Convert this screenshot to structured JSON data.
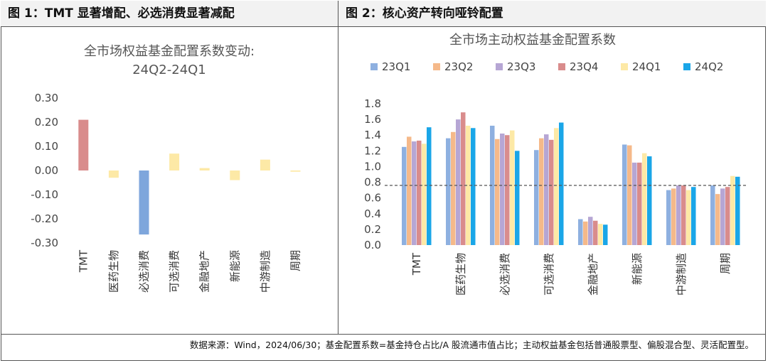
{
  "headers": {
    "left": "图 1：TMT 显著增配、必选消费显著减配",
    "right": "图 2：核心资产转向哑铃配置"
  },
  "footnote": "数据来源：Wind，2024/06/30；基金配置系数=基金持仓占比/A 股流通市值占比；主动权益基金包括普通股票型、偏股混合型、灵活配置型。",
  "chart_data": [
    {
      "type": "bar",
      "title": "全市场权益基金配置系数变动:",
      "subtitle": "24Q2-24Q1",
      "categories": [
        "TMT",
        "医药生物",
        "必选消费",
        "可选消费",
        "金融地产",
        "新能源",
        "中游制造",
        "周期"
      ],
      "values": [
        0.21,
        -0.03,
        -0.265,
        0.07,
        0.01,
        -0.04,
        0.045,
        -0.005
      ],
      "colors": [
        "#d98c8c",
        "#fde9a6",
        "#7ea6dc",
        "#fde9a6",
        "#fde9a6",
        "#fde9a6",
        "#fde9a6",
        "#fde9a6"
      ],
      "yticks": [
        "0.30",
        "0.20",
        "0.10",
        "0.00",
        "-0.10",
        "-0.20",
        "-0.30"
      ],
      "ylim": [
        -0.3,
        0.3
      ],
      "grid": false
    },
    {
      "type": "bar",
      "title": "全市场主动权益基金配置系数",
      "categories": [
        "TMT",
        "医药生物",
        "必选消费",
        "可选消费",
        "金融地产",
        "新能源",
        "中游制造",
        "周期"
      ],
      "series": [
        {
          "name": "23Q1",
          "color": "#8eb0e0",
          "values": [
            1.25,
            1.36,
            1.52,
            1.21,
            0.33,
            1.28,
            0.7,
            0.76
          ]
        },
        {
          "name": "23Q2",
          "color": "#f5b98a",
          "values": [
            1.38,
            1.44,
            1.35,
            1.36,
            0.3,
            1.27,
            0.72,
            0.65
          ]
        },
        {
          "name": "23Q3",
          "color": "#b6a6d4",
          "values": [
            1.32,
            1.6,
            1.42,
            1.41,
            0.36,
            1.05,
            0.76,
            0.72
          ]
        },
        {
          "name": "23Q4",
          "color": "#d98c8c",
          "values": [
            1.33,
            1.69,
            1.4,
            1.34,
            0.31,
            1.05,
            0.76,
            0.74
          ]
        },
        {
          "name": "24Q1",
          "color": "#fde9a6",
          "values": [
            1.29,
            1.52,
            1.46,
            1.49,
            0.27,
            1.17,
            0.7,
            0.88
          ]
        },
        {
          "name": "24Q2",
          "color": "#1aa6e8",
          "values": [
            1.5,
            1.49,
            1.2,
            1.56,
            0.26,
            1.13,
            0.74,
            0.87
          ]
        }
      ],
      "yticks": [
        "1.8",
        "1.6",
        "1.4",
        "1.2",
        "1.0",
        "0.8",
        "0.6",
        "0.4",
        "0.2",
        "0.0"
      ],
      "ylim": [
        0,
        1.8
      ],
      "reference_line": 0.76,
      "legend_position": "top",
      "grid": false
    }
  ]
}
